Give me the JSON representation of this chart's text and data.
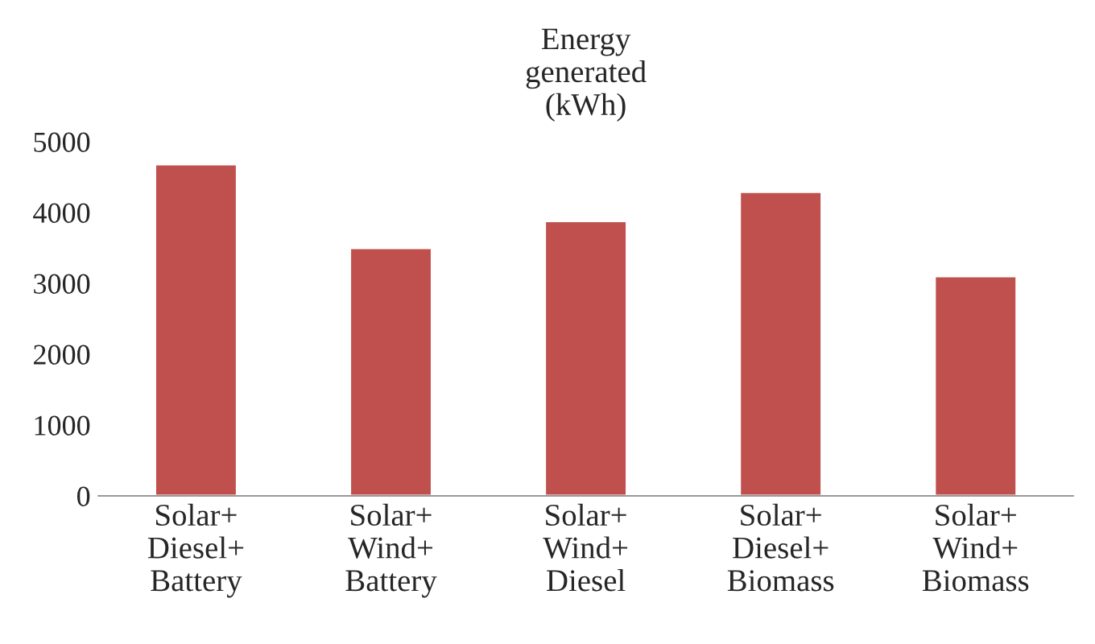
{
  "chart_data": {
    "type": "bar",
    "title": "Energy\ngenerated\n(kWh)",
    "categories": [
      "Solar+\nDiesel+\nBattery",
      "Solar+\nWind+\nBattery",
      "Solar+\nWind+\nDiesel",
      "Solar+\nDiesel+\nBiomass",
      "Solar+\nWind+\nBiomass"
    ],
    "values": [
      4680,
      3500,
      3880,
      4290,
      3100
    ],
    "color": "#c0504d",
    "ylim": [
      0,
      5000
    ],
    "yticks": [
      0,
      1000,
      2000,
      3000,
      4000,
      5000
    ],
    "grid": false
  }
}
